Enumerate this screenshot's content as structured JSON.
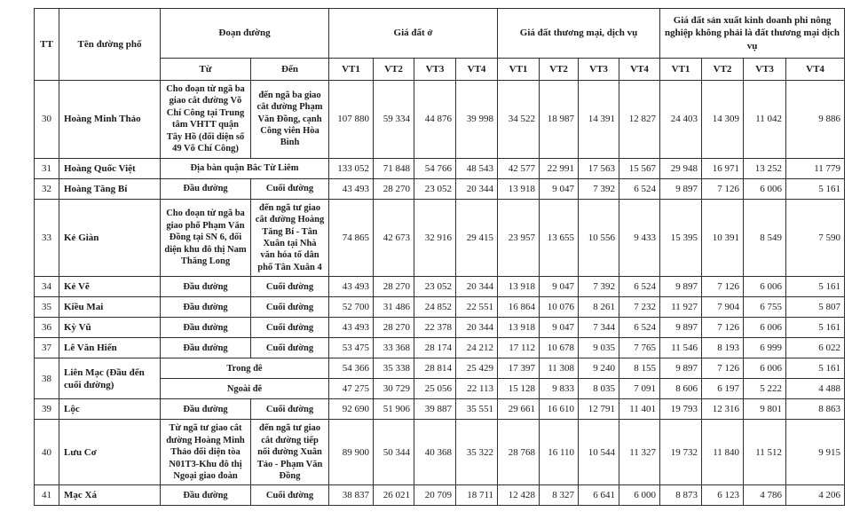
{
  "table": {
    "header": {
      "tt": "TT",
      "street": "Tên đường phố",
      "section": "Đoạn đường",
      "from": "Từ",
      "to": "Đến",
      "group_residential": "Giá đất ở",
      "group_commercial": "Giá đất thương mại, dịch vụ",
      "group_production": "Giá đất sản xuất kinh doanh phi nông nghiệp không phải là đất thương mại dịch vụ",
      "vt": [
        "VT1",
        "VT2",
        "VT3",
        "VT4"
      ]
    },
    "rows": [
      {
        "tt": "30",
        "rowspan": 1,
        "name": "Hoàng Minh Thảo",
        "from": "Cho đoạn từ ngã ba giao cắt đường Võ Chí Công tại Trung tâm VHTT quận Tây Hồ (đối diện số 49 Võ Chí Công)",
        "to": "đến ngã ba giao cắt đường Phạm Văn Đồng, cạnh Công viên Hòa Bình",
        "span": null,
        "values": [
          "107 880",
          "59 334",
          "44 876",
          "39 998",
          "34 522",
          "18 987",
          "14 391",
          "12 827",
          "24 403",
          "14 309",
          "11 042",
          "9 886"
        ]
      },
      {
        "tt": "31",
        "rowspan": 1,
        "name": "Hoàng Quốc Việt",
        "from": null,
        "to": null,
        "span": "Địa bàn quận Bắc Từ Liêm",
        "values": [
          "133 052",
          "71 848",
          "54 766",
          "48 543",
          "42 577",
          "22 991",
          "17 563",
          "15 567",
          "29 948",
          "16 971",
          "13 252",
          "11 779"
        ]
      },
      {
        "tt": "32",
        "rowspan": 1,
        "name": "Hoàng Tăng Bí",
        "from": "Đầu đường",
        "to": "Cuối đường",
        "span": null,
        "values": [
          "43 493",
          "28 270",
          "23 052",
          "20 344",
          "13 918",
          "9 047",
          "7 392",
          "6 524",
          "9 897",
          "7 126",
          "6 006",
          "5 161"
        ]
      },
      {
        "tt": "33",
        "rowspan": 1,
        "name": "Kẻ Giàn",
        "from": "Cho đoạn từ ngã ba giao phố Phạm Văn Đồng tại SN 6, đối diện khu đô thị Nam Thăng Long",
        "to": "đến ngã tư giao cắt đường Hoàng Tăng Bí - Tân Xuân tại Nhà văn hóa tổ dân phố Tân Xuân 4",
        "span": null,
        "values": [
          "74 865",
          "42 673",
          "32 916",
          "29 415",
          "23 957",
          "13 655",
          "10 556",
          "9 433",
          "15 395",
          "10 391",
          "8 549",
          "7 590"
        ]
      },
      {
        "tt": "34",
        "rowspan": 1,
        "name": "Kẻ Vẽ",
        "from": "Đầu đường",
        "to": "Cuối đường",
        "span": null,
        "values": [
          "43 493",
          "28 270",
          "23 052",
          "20 344",
          "13 918",
          "9 047",
          "7 392",
          "6 524",
          "9 897",
          "7 126",
          "6 006",
          "5 161"
        ]
      },
      {
        "tt": "35",
        "rowspan": 1,
        "name": "Kiều Mai",
        "from": "Đầu đường",
        "to": "Cuối đường",
        "span": null,
        "values": [
          "52 700",
          "31 486",
          "24 852",
          "22 551",
          "16 864",
          "10 076",
          "8 261",
          "7 232",
          "11 927",
          "7 904",
          "6 755",
          "5 807"
        ]
      },
      {
        "tt": "36",
        "rowspan": 1,
        "name": "Kỳ Vũ",
        "from": "Đầu đường",
        "to": "Cuối đường",
        "span": null,
        "values": [
          "43 493",
          "28 270",
          "22 378",
          "20 344",
          "13 918",
          "9 047",
          "7 344",
          "6 524",
          "9 897",
          "7 126",
          "6 006",
          "5 161"
        ]
      },
      {
        "tt": "37",
        "rowspan": 1,
        "name": "Lê Văn Hiến",
        "from": "Đầu đường",
        "to": "Cuối đường",
        "span": null,
        "values": [
          "53 475",
          "33 368",
          "28 174",
          "24 212",
          "17 112",
          "10 678",
          "9 035",
          "7 765",
          "11 546",
          "8 193",
          "6 999",
          "6 022"
        ]
      },
      {
        "tt": "38",
        "rowspan": 2,
        "name": "Liên Mạc (Đầu đến cuối đường)",
        "from": null,
        "to": null,
        "span": "Trong đê",
        "values": [
          "54 366",
          "35 338",
          "28 814",
          "25 429",
          "17 397",
          "11 308",
          "9 240",
          "8 155",
          "9 897",
          "7 126",
          "6 006",
          "5 161"
        ]
      },
      {
        "tt": null,
        "rowspan": 1,
        "name": null,
        "from": null,
        "to": null,
        "span": "Ngoài đê",
        "values": [
          "47 275",
          "30 729",
          "25 056",
          "22 113",
          "15 128",
          "9 833",
          "8 035",
          "7 091",
          "8 606",
          "6 197",
          "5 222",
          "4 488"
        ]
      },
      {
        "tt": "39",
        "rowspan": 1,
        "name": "Lộc",
        "from": "Đầu đường",
        "to": "Cuối đường",
        "span": null,
        "values": [
          "92 690",
          "51 906",
          "39 887",
          "35 551",
          "29 661",
          "16 610",
          "12 791",
          "11 401",
          "19 793",
          "12 316",
          "9 801",
          "8 863"
        ]
      },
      {
        "tt": "40",
        "rowspan": 1,
        "name": "Lưu Cơ",
        "from": "Từ ngã tư giao cắt đường Hoàng Minh Thảo đối diện tòa N01T3-Khu đô thị Ngoại giao đoàn",
        "to": "đến ngã tư giao cắt đường tiếp nối đường Xuân Tảo - Phạm Văn Đồng",
        "span": null,
        "values": [
          "89 900",
          "50 344",
          "40 368",
          "35 322",
          "28 768",
          "16 110",
          "10 544",
          "11 327",
          "19 732",
          "11 840",
          "11 512",
          "9 915"
        ]
      },
      {
        "tt": "41",
        "rowspan": 1,
        "name": "Mạc Xá",
        "from": "Đầu đường",
        "to": "Cuối đường",
        "span": null,
        "values": [
          "38 837",
          "26 021",
          "20 709",
          "18 711",
          "12 428",
          "8 327",
          "6 641",
          "6 000",
          "8 873",
          "6 123",
          "4 786",
          "4 206"
        ]
      }
    ]
  }
}
